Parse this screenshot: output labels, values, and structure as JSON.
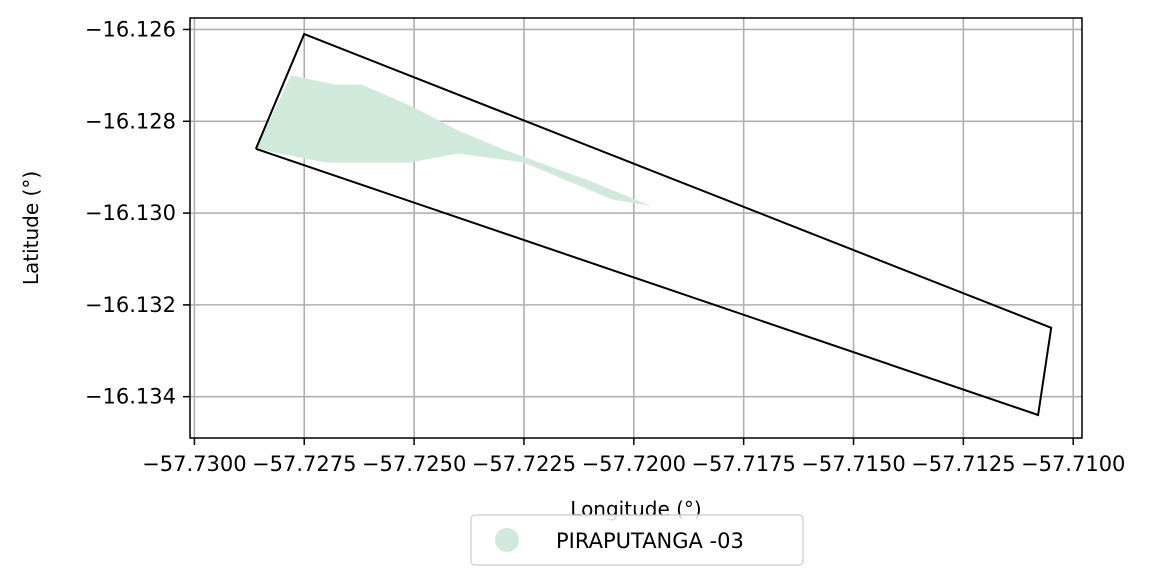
{
  "chart_data": {
    "type": "map",
    "xlabel": "Longitude (°)",
    "ylabel": "Latitude (°)",
    "xlim": [
      -57.7301,
      -57.7098
    ],
    "ylim": [
      -16.1349,
      -16.12575
    ],
    "grid": true,
    "x_ticks": [
      {
        "value": -57.73,
        "label": "−57.7300"
      },
      {
        "value": -57.7275,
        "label": "−57.7275"
      },
      {
        "value": -57.725,
        "label": "−57.7250"
      },
      {
        "value": -57.7225,
        "label": "−57.7225"
      },
      {
        "value": -57.72,
        "label": "−57.7200"
      },
      {
        "value": -57.7175,
        "label": "−57.7175"
      },
      {
        "value": -57.715,
        "label": "−57.7150"
      },
      {
        "value": -57.7125,
        "label": "−57.7125"
      },
      {
        "value": -57.71,
        "label": "−57.7100"
      }
    ],
    "y_ticks": [
      {
        "value": -16.126,
        "label": "−16.126"
      },
      {
        "value": -16.128,
        "label": "−16.128"
      },
      {
        "value": -16.13,
        "label": "−16.130"
      },
      {
        "value": -16.132,
        "label": "−16.132"
      },
      {
        "value": -16.134,
        "label": "−16.134"
      }
    ],
    "boundary": {
      "color": "#000000",
      "points": [
        [
          -57.7286,
          -16.1286
        ],
        [
          -57.7275,
          -16.1261
        ],
        [
          -57.7105,
          -16.1325
        ],
        [
          -57.7108,
          -16.1344
        ],
        [
          -57.7286,
          -16.1286
        ]
      ]
    },
    "area": {
      "name": "PIRAPUTANGA -03",
      "color": "#cfeadb",
      "points": [
        [
          -57.7286,
          -16.1286
        ],
        [
          -57.7278,
          -16.127
        ],
        [
          -57.7268,
          -16.1272
        ],
        [
          -57.7262,
          -16.1272
        ],
        [
          -57.725,
          -16.1277
        ],
        [
          -57.724,
          -16.1282
        ],
        [
          -57.723,
          -16.1286
        ],
        [
          -57.721,
          -16.1293
        ],
        [
          -57.7196,
          -16.12985
        ],
        [
          -57.7205,
          -16.1297
        ],
        [
          -57.7225,
          -16.1289
        ],
        [
          -57.724,
          -16.1287
        ],
        [
          -57.7251,
          -16.1289
        ],
        [
          -57.726,
          -16.1289
        ],
        [
          -57.727,
          -16.1289
        ],
        [
          -57.7286,
          -16.1286
        ]
      ]
    },
    "legend": {
      "position": "bottom-center",
      "entries": [
        {
          "label": "PIRAPUTANGA -03",
          "color": "#cfeadb"
        }
      ]
    }
  }
}
